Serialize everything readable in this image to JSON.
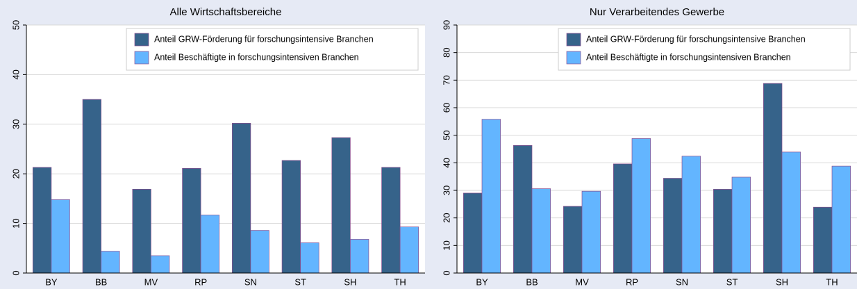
{
  "chart_data": [
    {
      "type": "bar",
      "title": "Alle Wirtschaftsbereiche",
      "categories": [
        "BY",
        "BB",
        "MV",
        "RP",
        "SN",
        "ST",
        "SH",
        "TH"
      ],
      "series": [
        {
          "name": "Anteil GRW-Förderung für forschungsintensive Branchen",
          "color": "#36638a",
          "values": [
            21.3,
            35,
            16.9,
            21.1,
            30.2,
            22.7,
            27.3,
            21.3
          ]
        },
        {
          "name": "Anteil Beschäftigte in forschungsintensiven Branchen",
          "color": "#63b5ff",
          "values": [
            14.8,
            4.4,
            3.5,
            11.7,
            8.6,
            6.1,
            6.8,
            9.3
          ]
        }
      ],
      "ylim": [
        0,
        50
      ],
      "yticks": [
        0,
        10,
        20,
        30,
        40,
        50
      ],
      "grid": true,
      "legend": "upper right"
    },
    {
      "type": "bar",
      "title": "Nur Verarbeitendes Gewerbe",
      "categories": [
        "BY",
        "BB",
        "MV",
        "RP",
        "SN",
        "ST",
        "SH",
        "TH"
      ],
      "series": [
        {
          "name": "Anteil GRW-Förderung für forschungsintensive Branchen",
          "color": "#36638a",
          "values": [
            29,
            46.3,
            24.2,
            39.6,
            34.4,
            30.4,
            68.8,
            23.9
          ]
        },
        {
          "name": "Anteil Beschäftigte in forschungsintensiven Branchen",
          "color": "#63b5ff",
          "values": [
            55.8,
            30.6,
            29.7,
            48.8,
            42.4,
            34.8,
            43.9,
            38.8
          ]
        }
      ],
      "ylim": [
        0,
        90
      ],
      "yticks": [
        0,
        10,
        20,
        30,
        40,
        50,
        60,
        70,
        80,
        90
      ],
      "grid": true,
      "legend": "upper right"
    }
  ]
}
